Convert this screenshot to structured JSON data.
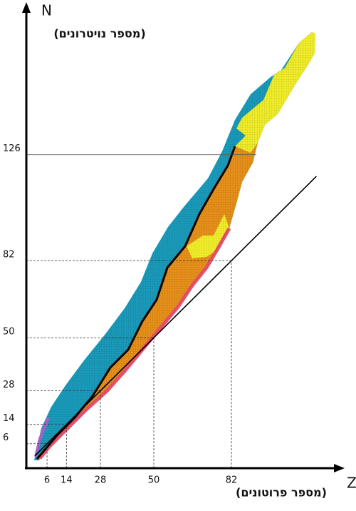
{
  "chart_data": {
    "type": "nuclide",
    "y_label": "N",
    "y_sublabel": "(מספר נויטרונים)",
    "x_label": "Z",
    "x_sublabel": "(מספר פרוטונים)",
    "xlim": [
      -3,
      128
    ],
    "ylim": [
      -4,
      189
    ],
    "xticks": [
      6,
      14,
      28,
      50,
      82
    ],
    "yticks": [
      6,
      14,
      28,
      50,
      82,
      126
    ],
    "series": [
      {
        "x": [
          1,
          117
        ],
        "values": [
          1,
          117
        ],
        "color": "#000000"
      }
    ]
  }
}
